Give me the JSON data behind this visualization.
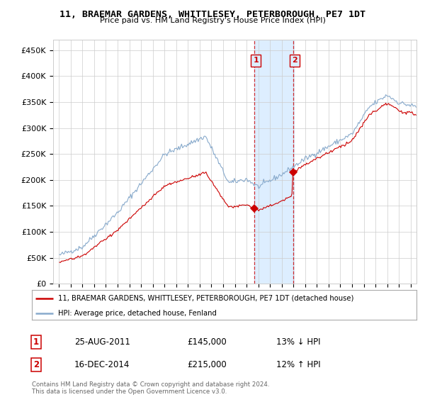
{
  "title1": "11, BRAEMAR GARDENS, WHITTLESEY, PETERBOROUGH, PE7 1DT",
  "title2": "Price paid vs. HM Land Registry's House Price Index (HPI)",
  "legend_line1": "11, BRAEMAR GARDENS, WHITTLESEY, PETERBOROUGH, PE7 1DT (detached house)",
  "legend_line2": "HPI: Average price, detached house, Fenland",
  "annotation1_label": "1",
  "annotation1_date": "25-AUG-2011",
  "annotation1_price": "£145,000",
  "annotation1_hpi": "13% ↓ HPI",
  "annotation2_label": "2",
  "annotation2_date": "16-DEC-2014",
  "annotation2_price": "£215,000",
  "annotation2_hpi": "12% ↑ HPI",
  "footer": "Contains HM Land Registry data © Crown copyright and database right 2024.\nThis data is licensed under the Open Government Licence v3.0.",
  "property_color": "#cc0000",
  "hpi_color": "#88aacc",
  "highlight_color": "#ddeeff",
  "ylim": [
    0,
    470000
  ],
  "yticks": [
    0,
    50000,
    100000,
    150000,
    200000,
    250000,
    300000,
    350000,
    400000,
    450000
  ],
  "sale1_x": 2011.646,
  "sale1_y": 145000,
  "sale2_x": 2014.958,
  "sale2_y": 215000,
  "highlight_x1": 2011.646,
  "highlight_x2": 2015.05,
  "xmin": 1995.0,
  "xmax": 2025.5
}
